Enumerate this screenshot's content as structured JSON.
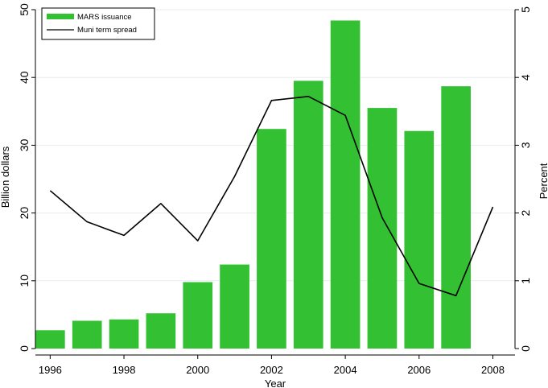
{
  "chart_data": {
    "type": "bar",
    "xlabel": "Year",
    "ylabel": "Billion dollars",
    "y2label": "Percent",
    "x_ticks": [
      1996,
      1998,
      2000,
      2002,
      2004,
      2006,
      2008
    ],
    "xlim": [
      1995.6,
      2008.6
    ],
    "ylim": [
      0,
      50
    ],
    "y2lim": [
      0,
      5
    ],
    "y_ticks": [
      0,
      10,
      20,
      30,
      40,
      50
    ],
    "y2_ticks": [
      0,
      1,
      2,
      3,
      4,
      5
    ],
    "grid": true,
    "legend_position": "top-left",
    "series": [
      {
        "name": "MARS issuance",
        "kind": "bar",
        "axis": "left",
        "color": "#33c133",
        "x": [
          1996,
          1997,
          1998,
          1999,
          2000,
          2001,
          2002,
          2003,
          2004,
          2005,
          2006,
          2007
        ],
        "values": [
          2.7,
          4.1,
          4.3,
          5.2,
          9.8,
          12.4,
          32.4,
          39.5,
          48.4,
          35.5,
          32.1,
          38.7
        ]
      },
      {
        "name": "Muni term spread",
        "kind": "line",
        "axis": "right",
        "color": "#000000",
        "x": [
          1996,
          1997,
          1998,
          1999,
          2000,
          2001,
          2002,
          2003,
          2004,
          2005,
          2006,
          2007,
          2008
        ],
        "values": [
          2.33,
          1.87,
          1.67,
          2.14,
          1.59,
          2.54,
          3.66,
          3.72,
          3.44,
          1.93,
          0.96,
          0.78,
          2.09
        ]
      }
    ]
  }
}
